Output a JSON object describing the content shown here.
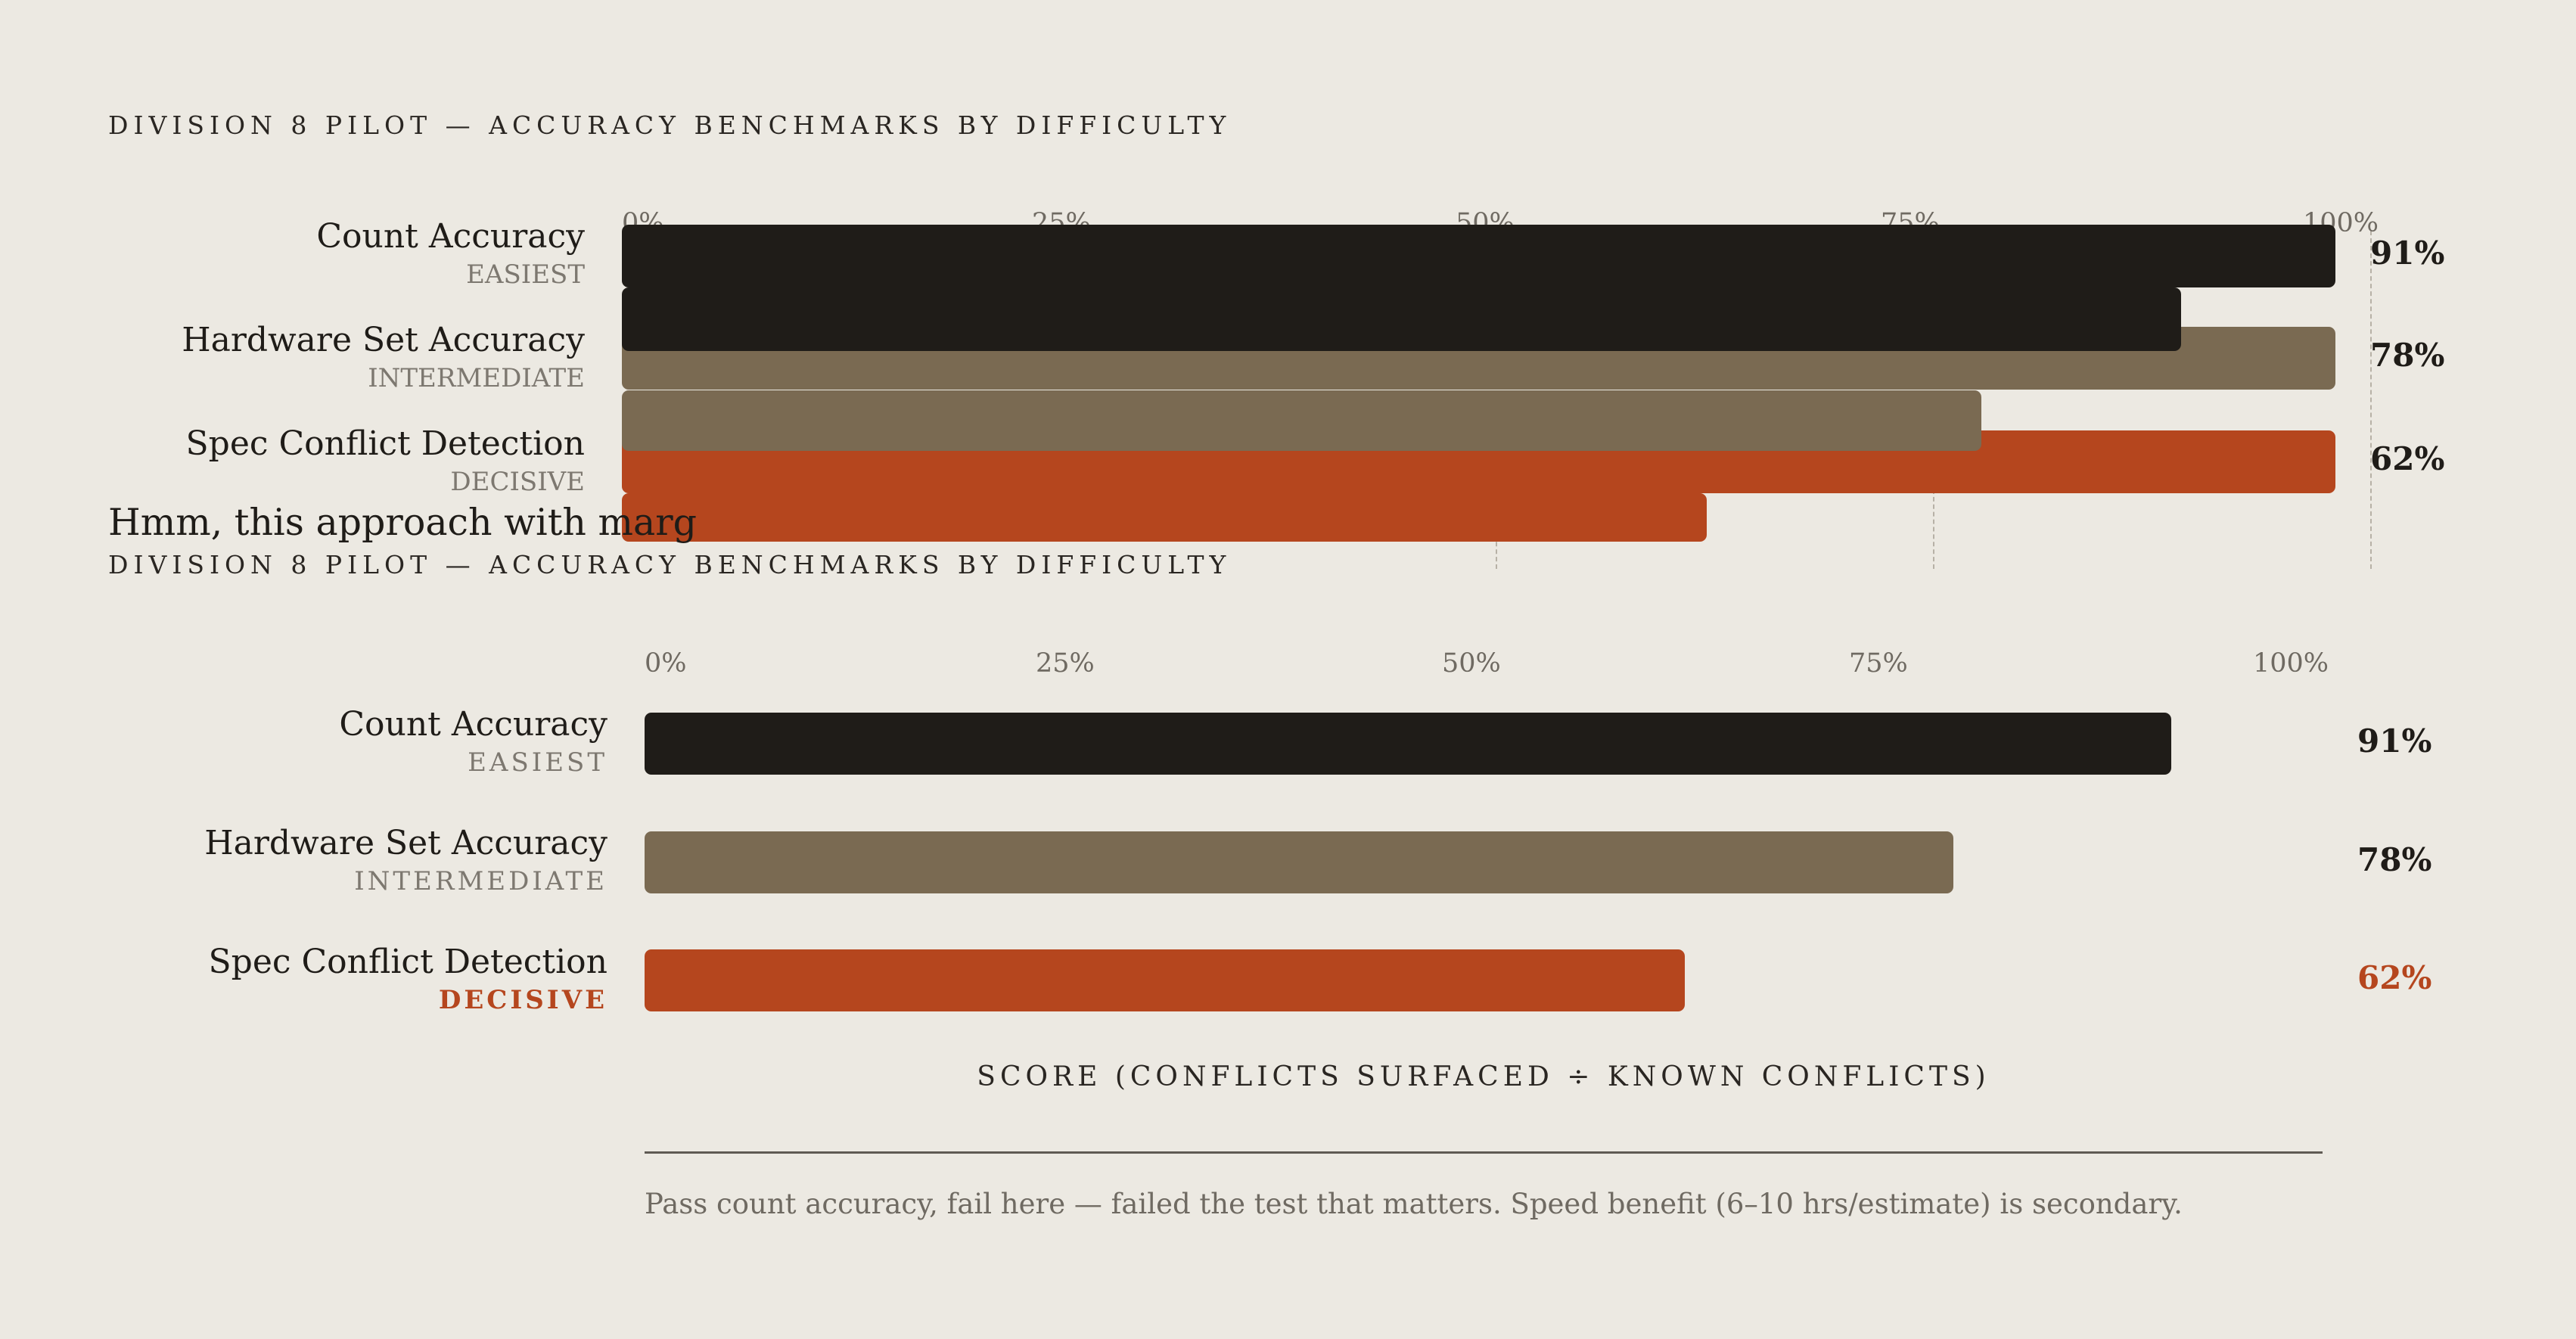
{
  "chart_data": [
    {
      "type": "bar",
      "orientation": "horizontal",
      "title": "DIVISION 8 PILOT — ACCURACY BENCHMARKS BY DIFFICULTY",
      "categories": [
        "Count Accuracy",
        "Hardware Set Accuracy",
        "Spec Conflict Detection"
      ],
      "difficulty": [
        "EASIEST",
        "INTERMEDIATE",
        "DECISIVE"
      ],
      "values": [
        91,
        78,
        62
      ],
      "value_labels": [
        "91%",
        "78%",
        "62%"
      ],
      "ticks": [
        "0%",
        "25%",
        "50%",
        "75%",
        "100%"
      ],
      "xlim": [
        0,
        100
      ],
      "colors": [
        "#1f1c18",
        "#7a6a52",
        "#b5461e"
      ],
      "grid": "dashed vertical"
    },
    {
      "type": "bar",
      "orientation": "horizontal",
      "title": "DIVISION 8 PILOT — ACCURACY BENCHMARKS BY DIFFICULTY",
      "categories": [
        "Count Accuracy",
        "Hardware Set Accuracy",
        "Spec Conflict Detection"
      ],
      "difficulty": [
        "EASIEST",
        "INTERMEDIATE",
        "DECISIVE"
      ],
      "values": [
        91,
        78,
        62
      ],
      "value_labels": [
        "91%",
        "78%",
        "62%"
      ],
      "ticks": [
        "0%",
        "25%",
        "50%",
        "75%",
        "100%"
      ],
      "xlim": [
        0,
        100
      ],
      "xlabel": "SCORE (CONFLICTS SURFACED ÷ KNOWN CONFLICTS)",
      "caption": "Pass count accuracy, fail here — failed the test that matters. Speed benefit (6–10 hrs/estimate) is secondary.",
      "colors": [
        "#1f1c18",
        "#7a6a52",
        "#b5461e"
      ],
      "highlight_color": "#b5461e",
      "grid": "none"
    }
  ],
  "note": "Hmm, this approach with marg"
}
